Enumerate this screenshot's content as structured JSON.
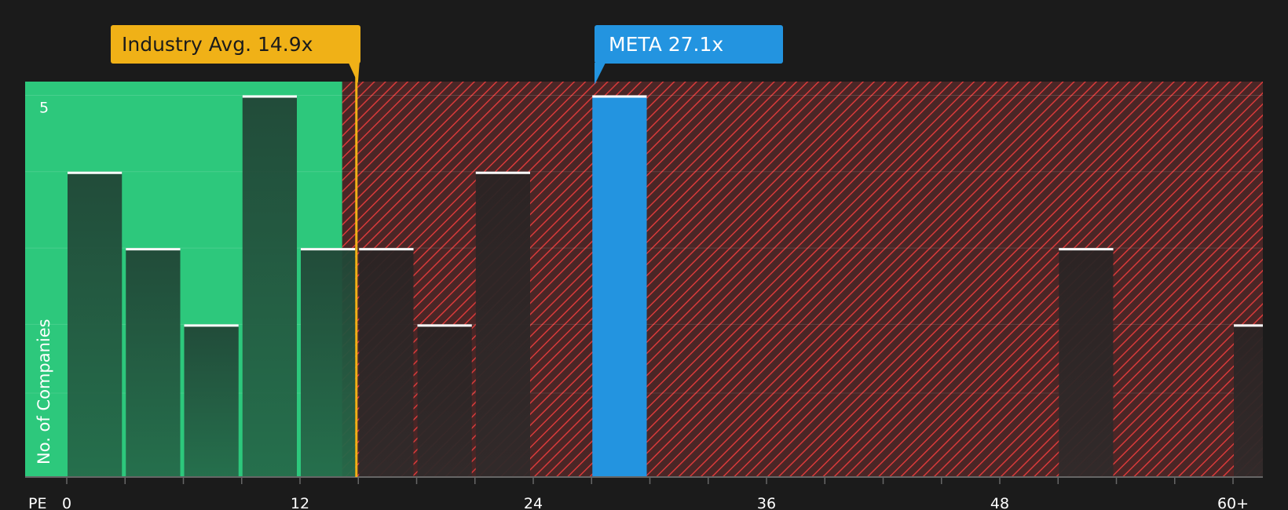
{
  "chart_data": {
    "type": "bar",
    "x_axis_label": "PE",
    "y_axis_label": "No. of Companies",
    "x_ticks": [
      {
        "value": 0,
        "label": "0"
      },
      {
        "value": 12,
        "label": "12"
      },
      {
        "value": 24,
        "label": "24"
      },
      {
        "value": 36,
        "label": "36"
      },
      {
        "value": 48,
        "label": "48"
      },
      {
        "value": 60,
        "label": "60+"
      }
    ],
    "y_ticks": [
      {
        "value": 5,
        "label": "5"
      }
    ],
    "x_range": [
      -2.2,
      61.5
    ],
    "y_range": [
      0,
      5.18
    ],
    "bin_width": 3,
    "bins": [
      {
        "x_start": 0,
        "count": 4,
        "highlight": false
      },
      {
        "x_start": 3,
        "count": 3,
        "highlight": false
      },
      {
        "x_start": 6,
        "count": 2,
        "highlight": false
      },
      {
        "x_start": 9,
        "count": 5,
        "highlight": false
      },
      {
        "x_start": 12,
        "count": 3,
        "highlight": false
      },
      {
        "x_start": 15,
        "count": 3,
        "highlight": false
      },
      {
        "x_start": 18,
        "count": 2,
        "highlight": false
      },
      {
        "x_start": 21,
        "count": 4,
        "highlight": false
      },
      {
        "x_start": 27,
        "count": 5,
        "highlight": true
      },
      {
        "x_start": 51,
        "count": 3,
        "highlight": false
      },
      {
        "x_start": 60,
        "count": 2,
        "highlight": false
      }
    ],
    "industry_avg": {
      "value": 14.9,
      "label": "Industry Avg. 14.9x"
    },
    "company": {
      "value": 27.1,
      "label": "META 27.1x"
    },
    "colors": {
      "background": "#1b1b1b",
      "undervalued_zone": "#2dc87c",
      "overvalued_zone": "#4a2626",
      "hatch": "#d93a3a",
      "bar_dark": "#1f4a35",
      "bar_over": "#2c2a2a",
      "highlight_bar": "#2394e0",
      "industry_callout": "#f0b117",
      "company_callout": "#2394e0",
      "bar_cap": "#ffffff"
    }
  }
}
